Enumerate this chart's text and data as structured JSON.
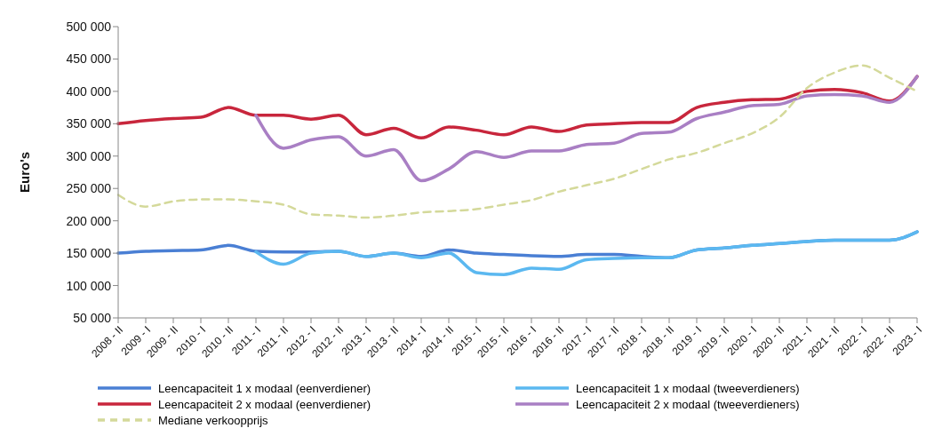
{
  "chart_data": {
    "type": "line",
    "ylabel": "Euro's",
    "categories": [
      "2008 - II",
      "2009 - I",
      "2009 - II",
      "2010 - I",
      "2010 - II",
      "2011 - I",
      "2011 - II",
      "2012 - I",
      "2012 - II",
      "2013 - I",
      "2013 - II",
      "2014 - I",
      "2014 - II",
      "2015 - I",
      "2015 - II",
      "2016 - I",
      "2016 - II",
      "2017 - I",
      "2017 - II",
      "2018 - I",
      "2018 - II",
      "2019 - I",
      "2019 - II",
      "2020 - I",
      "2020 - II",
      "2021 - I",
      "2021 - II",
      "2022 - I",
      "2022 - II",
      "2023 - I"
    ],
    "ylim": [
      50000,
      500000
    ],
    "yticks": [
      {
        "value": 50000,
        "label": "50 000"
      },
      {
        "value": 100000,
        "label": "100 000"
      },
      {
        "value": 150000,
        "label": "150 000"
      },
      {
        "value": 200000,
        "label": "200 000"
      },
      {
        "value": 250000,
        "label": "250 000"
      },
      {
        "value": 300000,
        "label": "300 000"
      },
      {
        "value": 350000,
        "label": "350 000"
      },
      {
        "value": 400000,
        "label": "400 000"
      },
      {
        "value": 450000,
        "label": "450 000"
      },
      {
        "value": 500000,
        "label": "500 000"
      }
    ],
    "grid": false,
    "legend": "bottom",
    "marker": "none",
    "series": [
      {
        "name": "Leencapaciteit 1 x modaal (eenverdiener)",
        "color": "#4a7fd4",
        "values": [
          150000,
          153000,
          154000,
          155000,
          162000,
          153000,
          152000,
          152000,
          153000,
          145000,
          150000,
          145000,
          155000,
          150000,
          148000,
          146000,
          145000,
          148000,
          148000,
          145000,
          143000,
          155000,
          158000,
          162000,
          165000,
          168000,
          170000,
          170000,
          170000,
          183000
        ]
      },
      {
        "name": "Leencapaciteit 1 x modaal (tweeverdieners)",
        "color": "#5bb8f0",
        "values": [
          null,
          null,
          null,
          null,
          null,
          152000,
          133000,
          150000,
          153000,
          145000,
          150000,
          143000,
          150000,
          120000,
          117000,
          127000,
          125000,
          140000,
          142000,
          143000,
          143000,
          155000,
          158000,
          162000,
          165000,
          168000,
          170000,
          170000,
          170000,
          183000
        ]
      },
      {
        "name": "Leencapaciteit 2 x modaal (eenverdiener)",
        "color": "#c8263c",
        "values": [
          350000,
          355000,
          358000,
          360000,
          375000,
          363000,
          363000,
          357000,
          363000,
          333000,
          343000,
          328000,
          345000,
          340000,
          333000,
          345000,
          338000,
          348000,
          350000,
          352000,
          352000,
          375000,
          383000,
          387000,
          388000,
          400000,
          403000,
          398000,
          385000,
          423000
        ]
      },
      {
        "name": "Leencapaciteit 2 x modaal (tweeverdieners)",
        "color": "#a97fc4",
        "values": [
          null,
          null,
          null,
          null,
          null,
          363000,
          312000,
          325000,
          330000,
          300000,
          310000,
          262000,
          280000,
          307000,
          298000,
          308000,
          308000,
          318000,
          320000,
          335000,
          337000,
          358000,
          368000,
          378000,
          380000,
          393000,
          395000,
          393000,
          383000,
          423000
        ]
      },
      {
        "name": "Mediane verkoopprijs",
        "color": "#d4d99a",
        "line_style": "dashed",
        "values": [
          240000,
          222000,
          230000,
          233000,
          233000,
          230000,
          225000,
          210000,
          208000,
          205000,
          208000,
          213000,
          215000,
          218000,
          225000,
          232000,
          245000,
          255000,
          265000,
          280000,
          295000,
          305000,
          320000,
          335000,
          360000,
          405000,
          429000,
          440000,
          421000,
          400000
        ]
      }
    ]
  }
}
